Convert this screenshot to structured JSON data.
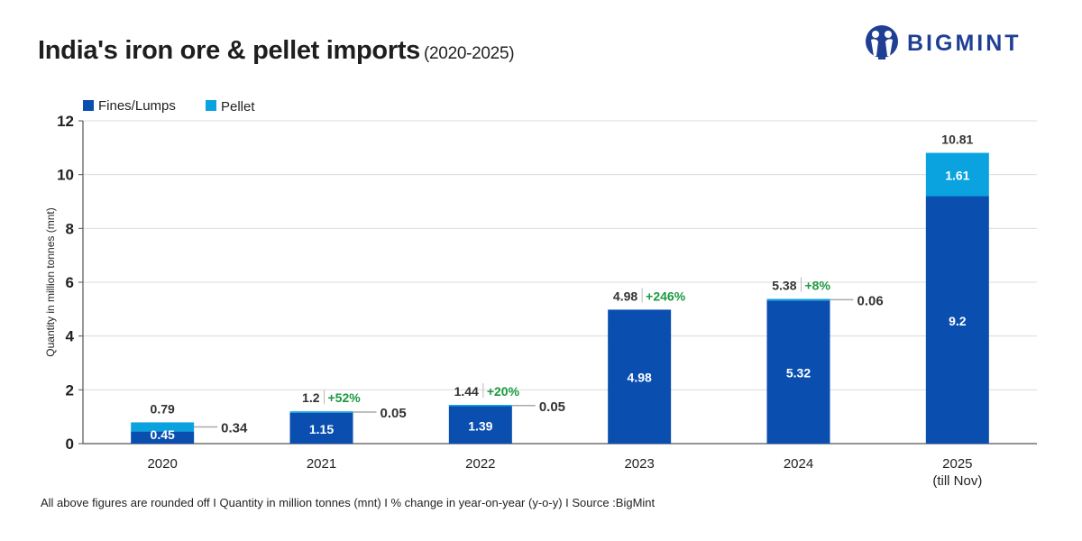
{
  "header": {
    "title": "India's iron ore & pellet imports",
    "subtitle": "(2020-2025)",
    "logo_text": "BIGMINT"
  },
  "footer": {
    "note": "All above figures are rounded off  I  Quantity in million tonnes (mnt)  I  % change in year-on-year (y-o-y)  I  Source :BigMint"
  },
  "colors": {
    "fines_lumps": "#0a4fb0",
    "pellet": "#0aa3e0",
    "growth": "#1a9a3f",
    "brand": "#1f3f95"
  },
  "chart_data": {
    "type": "bar",
    "stacked": true,
    "title": "India's iron ore & pellet imports (2020-2025)",
    "xlabel": "",
    "ylabel": "Quantity in million tonnes (mnt)",
    "ylim": [
      0,
      12
    ],
    "yticks": [
      0,
      2,
      4,
      6,
      8,
      10,
      12
    ],
    "grid": true,
    "legend_position": "top-left",
    "categories": [
      "2020",
      "2021",
      "2022",
      "2023",
      "2024",
      "2025"
    ],
    "category_sublabels": [
      "",
      "",
      "",
      "",
      "",
      "(till Nov)"
    ],
    "series": [
      {
        "name": "Fines/Lumps",
        "values": [
          0.45,
          1.15,
          1.39,
          4.98,
          5.32,
          9.2
        ],
        "labels": [
          "0.45",
          "1.15",
          "1.39",
          "4.98",
          "5.32",
          "9.2"
        ]
      },
      {
        "name": "Pellet",
        "values": [
          0.34,
          0.05,
          0.05,
          0,
          0.06,
          1.61
        ],
        "labels": [
          "0.34",
          "0.05",
          "0.05",
          "",
          "0.06",
          "1.61"
        ]
      }
    ],
    "totals": [
      "0.79",
      "1.2",
      "1.44",
      "4.98",
      "5.38",
      "10.81"
    ],
    "yoy_change": [
      "",
      "+52%",
      "+20%",
      "+246%",
      "+8%",
      ""
    ]
  }
}
